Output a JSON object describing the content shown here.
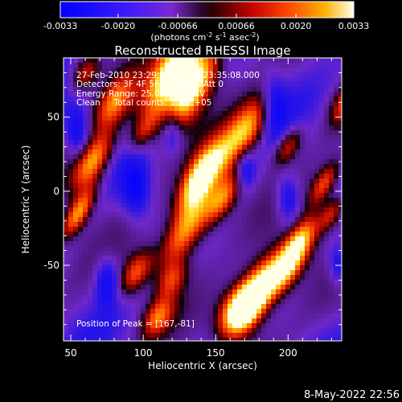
{
  "chart_data": {
    "type": "heatmap",
    "title": "Reconstructed RHESSI Image",
    "xlabel": "Heliocentric X (arcsec)",
    "ylabel": "Heliocentric Y (arcsec)",
    "xlim": [
      45,
      237
    ],
    "ylim": [
      -101,
      90
    ],
    "x_ticks": [
      50,
      100,
      150,
      200
    ],
    "y_ticks": [
      -50,
      0,
      50
    ],
    "grid": false,
    "colorbar": {
      "ticks": [
        "-0.0033",
        "-0.0020",
        "-0.00066",
        "0.00066",
        "0.0020",
        "0.0033"
      ],
      "range": [
        -0.0033,
        0.0033
      ],
      "units_label": "(photons cm",
      "units_exp1": "-2",
      "units_mid": " s",
      "units_exp2": "-1",
      "units_end": " asec",
      "units_exp3": "-2",
      "units_close": ")"
    },
    "annotations": {
      "time": "27-Feb-2010 23:29:08.000 to 23:35:08.000",
      "detectors": "Detectors: 3F 4F 5F 6F 7F 8F, Att 0",
      "energy": "Energy Range: 25.0 - 50.0 keV",
      "clean": "Clean     Total counts: 1.71E+05",
      "peak": "Position of Peak = [167,-81]"
    },
    "peak": [
      167,
      -81
    ],
    "footer_date": "8-May-2022 22:56"
  }
}
